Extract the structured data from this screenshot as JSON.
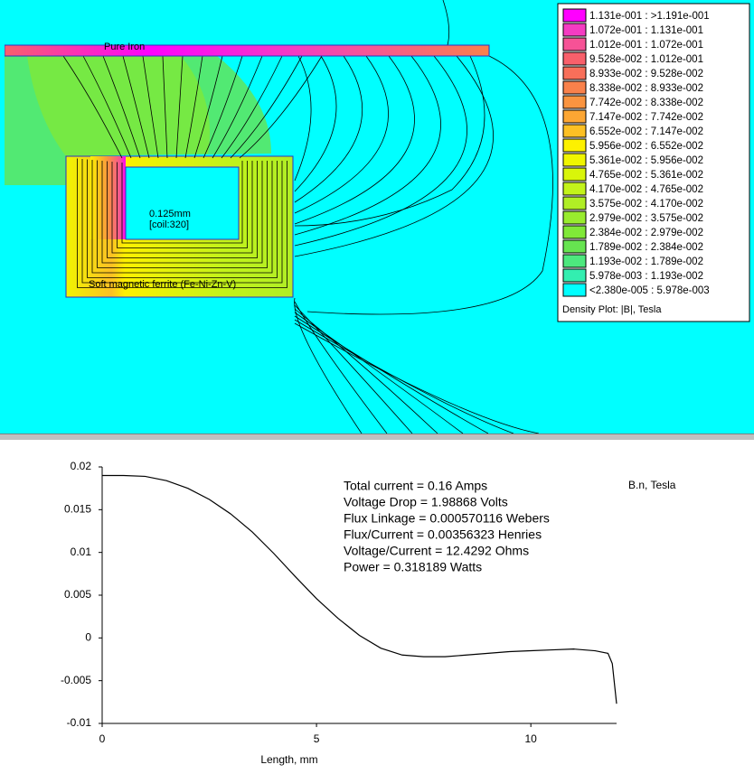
{
  "density_plot": {
    "labels": [
      "Pure Iron",
      "0.125mm",
      "[coil:320]",
      "Soft magnetic ferrite (Fe-Ni-Zn-V)"
    ],
    "legend": {
      "title": "Density Plot: |B|, Tesla",
      "entries": [
        {
          "label": "1.131e-001 : >1.191e-001",
          "color": "#ff00ff"
        },
        {
          "label": "1.072e-001 : 1.131e-001",
          "color": "#f43cc2"
        },
        {
          "label": "1.012e-001 : 1.072e-001",
          "color": "#f65296"
        },
        {
          "label": "9.528e-002 : 1.012e-001",
          "color": "#f8606b"
        },
        {
          "label": "8.933e-002 : 9.528e-002",
          "color": "#f86f5a"
        },
        {
          "label": "8.338e-002 : 8.933e-002",
          "color": "#f9814b"
        },
        {
          "label": "7.742e-002 : 8.338e-002",
          "color": "#fa9440"
        },
        {
          "label": "7.147e-002 : 7.742e-002",
          "color": "#fca633"
        },
        {
          "label": "6.552e-002 : 7.147e-002",
          "color": "#fcc024"
        },
        {
          "label": "5.956e-002 : 6.552e-002",
          "color": "#fdf100"
        },
        {
          "label": "5.361e-002 : 5.956e-002",
          "color": "#f0f500"
        },
        {
          "label": "4.765e-002 : 5.361e-002",
          "color": "#d9f50a"
        },
        {
          "label": "4.170e-002 : 4.765e-002",
          "color": "#c3f31a"
        },
        {
          "label": "3.575e-002 : 4.170e-002",
          "color": "#b0ee25"
        },
        {
          "label": "2.979e-002 : 3.575e-002",
          "color": "#99ec2e"
        },
        {
          "label": "2.384e-002 : 2.979e-002",
          "color": "#80e838"
        },
        {
          "label": "1.789e-002 : 2.384e-002",
          "color": "#66e450"
        },
        {
          "label": "1.193e-002 : 1.789e-002",
          "color": "#4de87e"
        },
        {
          "label": "5.978e-003 : 1.193e-002",
          "color": "#33eeb0"
        },
        {
          "label": "<2.380e-005 : 5.978e-003",
          "color": "#00ffff"
        }
      ]
    }
  },
  "chart_data": {
    "type": "line",
    "series_label": "B.n, Tesla",
    "x_label": "Length, mm",
    "annotations": [
      "Total current = 0.16 Amps",
      "Voltage Drop = 1.98868 Volts",
      "Flux Linkage = 0.000570116 Webers",
      "Flux/Current = 0.00356323 Henries",
      "Voltage/Current = 12.4292 Ohms",
      "Power = 0.318189 Watts"
    ],
    "color": "#000000",
    "x": [
      0,
      0.5,
      1,
      1.5,
      2,
      2.5,
      3,
      3.5,
      4,
      4.5,
      5,
      5.5,
      6,
      6.5,
      7,
      7.5,
      8,
      8.5,
      9,
      9.5,
      10,
      10.5,
      11,
      11.5,
      11.8,
      11.9,
      12
    ],
    "values": [
      0.019,
      0.019,
      0.0189,
      0.0184,
      0.0175,
      0.0162,
      0.0145,
      0.0124,
      0.0099,
      0.0072,
      0.0046,
      0.0023,
      0.0003,
      -0.0012,
      -0.002,
      -0.0022,
      -0.0022,
      -0.002,
      -0.0018,
      -0.0016,
      -0.0015,
      -0.0014,
      -0.0013,
      -0.0015,
      -0.0018,
      -0.003,
      -0.0077
    ],
    "xlim": [
      0,
      12
    ],
    "ylim": [
      -0.01,
      0.02
    ],
    "xticks": [
      0,
      5,
      10
    ],
    "yticks": [
      0.02,
      0.015,
      0.01,
      0.005,
      0,
      -0.005,
      -0.01
    ]
  }
}
